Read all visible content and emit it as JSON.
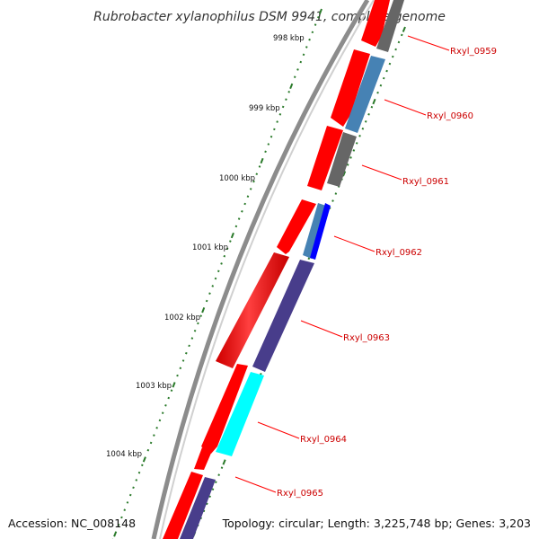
{
  "title": "Rubrobacter xylanophilus DSM 9941, complete genome",
  "footer": {
    "accession": "Accession: NC_008148",
    "summary": "Topology: circular; Length: 3,225,748 bp; Genes: 3,203"
  },
  "colors": {
    "backbone": "#8c8c8c",
    "tick": "#2a7a2a",
    "forward_gene": "#ff0000",
    "label": "#cc0000",
    "label_line": "#ff0000"
  },
  "kbp_labels": [
    "998 kbp",
    "999 kbp",
    "1000 kbp",
    "1001 kbp",
    "1002 kbp",
    "1003 kbp",
    "1004 kbp"
  ],
  "gene_labels": [
    "Rxyl_0959",
    "Rxyl_0960",
    "Rxyl_0961",
    "Rxyl_0962",
    "Rxyl_0963",
    "Rxyl_0964",
    "Rxyl_0965"
  ],
  "reverse_gene_colors": [
    "#666666",
    "#4682b4",
    "#666666",
    "#0000ff",
    "#483d8b",
    "#00ffff",
    "#483d8b"
  ]
}
